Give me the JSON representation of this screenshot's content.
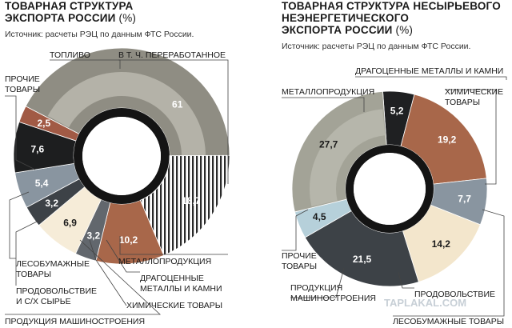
{
  "chart_data": [
    {
      "type": "pie",
      "title": "ТОВАРНАЯ СТРУКТУРА ЭКСПОРТА РОССИИ",
      "title_line1": "ТОВАРНАЯ СТРУКТУРА",
      "title_line2": "ЭКСПОРТА РОССИИ",
      "title_unit": "(%)",
      "source": "Источник: расчеты РЭЦ по данным ФТС России.",
      "slices": [
        {
          "label": "ТОПЛИВО",
          "value": 61,
          "value_text": "61",
          "color": "#8f8d83"
        },
        {
          "label": "МЕТАЛЛОПРОДУКЦИЯ",
          "value": 10.2,
          "value_text": "10,2",
          "color": "#a8674a"
        },
        {
          "label": "ДРАГОЦЕННЫЕ МЕТАЛЛЫ И КАМНИ",
          "value": 3.2,
          "value_text": "3,2",
          "color": "#62676d"
        },
        {
          "label": "ХИМИЧЕСКИЕ ТОВАРЫ",
          "value": 6.9,
          "value_text": "6,9",
          "color": "#f6ecd8"
        },
        {
          "label": "ПРОДУКЦИЯ МАШИНОСТРОЕНИЯ",
          "value": 3.2,
          "value_text": "3,2",
          "color": "#3d4247"
        },
        {
          "label": "ПРОДОВОЛЬСТВИЕ И С/Х СЫРЬЕ",
          "value": 5.4,
          "value_text": "5,4",
          "color": "#8995a0"
        },
        {
          "label": "ЛЕСОБУМАЖНЫЕ ТОВАРЫ",
          "value": 7.6,
          "value_text": "7,6",
          "color": "#1d1e1f"
        },
        {
          "label": "ПРОЧИЕ ТОВАРЫ",
          "value": 2.5,
          "value_text": "2,5",
          "color": "#a15a45"
        }
      ],
      "sub_segment": {
        "label": "В Т. Ч. ПЕРЕРАБОТАННОЕ",
        "value": 18.7,
        "value_text": "18,7"
      }
    },
    {
      "type": "pie",
      "title": "ТОВАРНАЯ СТРУКТУРА НЕСЫРЬЕВОГО НЕЭНЕРГЕТИЧЕСКОГО ЭКСПОРТА РОССИИ",
      "title_line1": "ТОВАРНАЯ СТРУКТУРА НЕСЫРЬЕВОГО",
      "title_line2": "НЕЭНЕРГЕТИЧЕСКОГО",
      "title_line3": "ЭКСПОРТА РОССИИ",
      "title_unit": "(%)",
      "source": "Источник: расчеты РЭЦ по данным ФТС России.",
      "slices": [
        {
          "label": "ДРАГОЦЕННЫЕ МЕТАЛЛЫ И КАМНИ",
          "value": 5.2,
          "value_text": "5,2",
          "color": "#1f2022"
        },
        {
          "label": "ХИМИЧЕСКИЕ ТОВАРЫ",
          "value": 19.2,
          "value_text": "19,2",
          "color": "#a8674a"
        },
        {
          "label": "ЛЕСОБУМАЖНЫЕ ТОВАРЫ",
          "value": 7.7,
          "value_text": "7,7",
          "color": "#8995a0"
        },
        {
          "label": "ПРОДОВОЛЬСТВИЕ",
          "value": 14.2,
          "value_text": "14,2",
          "color": "#f3e6cc"
        },
        {
          "label": "ПРОДУКЦИЯ МАШИНОСТРОЕНИЯ",
          "value": 21.5,
          "value_text": "21,5",
          "color": "#3d4247"
        },
        {
          "label": "ПРОЧИЕ ТОВАРЫ",
          "value": 4.5,
          "value_text": "4,5",
          "color": "#b6d0da"
        },
        {
          "label": "МЕТАЛЛОПРОДУКЦИЯ",
          "value": 27.7,
          "value_text": "27,7",
          "color": "#a3a397"
        }
      ]
    }
  ],
  "watermark": "TAPLAKAL.COM"
}
